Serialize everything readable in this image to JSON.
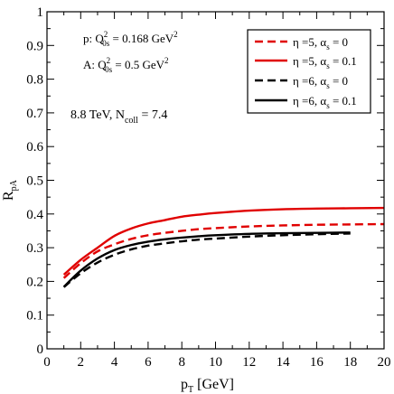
{
  "chart_data": {
    "type": "line",
    "xlabel": {
      "main": "p",
      "sub": "T",
      "rest": " [GeV]"
    },
    "ylabel": {
      "main": "R",
      "sub": "pA"
    },
    "xlim": [
      0,
      20
    ],
    "ylim": [
      0,
      1
    ],
    "xticks": [
      0,
      2,
      4,
      6,
      8,
      10,
      12,
      14,
      16,
      18,
      20
    ],
    "yticks": [
      0,
      0.1,
      0.2,
      0.3,
      0.4,
      0.5,
      0.6,
      0.7,
      0.8,
      0.9,
      1
    ],
    "ytick_labels": [
      "0",
      "0.1",
      "0.2",
      "0.3",
      "0.4",
      "0.5",
      "0.6",
      "0.7",
      "0.8",
      "0.9",
      "1"
    ],
    "legend_position": "top-right",
    "annotations": {
      "p_line": {
        "pre": "p:  Q",
        "sup": "2",
        "sub": "0s",
        "post": " = 0.168 GeV",
        "sup2": "2"
      },
      "a_line": {
        "pre": "A:  Q",
        "sup": "2",
        "sub": "0s",
        "post": " = 0.5 GeV",
        "sup2": "2"
      },
      "energy": {
        "pre": "8.8 TeV,  N",
        "sub": "coll",
        "post": " = 7.4"
      }
    },
    "series": [
      {
        "name": "η =5, α_s = 0",
        "label": {
          "pre": "η =5, α",
          "sub": "s",
          "post": " = 0"
        },
        "color": "#e00000",
        "dash": "dashed",
        "x": [
          1,
          2,
          3,
          4,
          5,
          6,
          7,
          8,
          9,
          10,
          12,
          14,
          16,
          18,
          20
        ],
        "y": [
          0.21,
          0.254,
          0.289,
          0.31,
          0.326,
          0.337,
          0.344,
          0.35,
          0.355,
          0.358,
          0.363,
          0.366,
          0.368,
          0.369,
          0.37
        ]
      },
      {
        "name": "η =5, α_s = 0.1",
        "label": {
          "pre": "η =5, α",
          "sub": "s",
          "post": " = 0.1"
        },
        "color": "#e00000",
        "dash": "solid",
        "x": [
          1,
          2,
          3,
          4,
          5,
          6,
          7,
          8,
          9,
          10,
          12,
          14,
          16,
          18,
          20
        ],
        "y": [
          0.22,
          0.264,
          0.3,
          0.335,
          0.357,
          0.372,
          0.382,
          0.392,
          0.398,
          0.403,
          0.41,
          0.414,
          0.416,
          0.417,
          0.418
        ]
      },
      {
        "name": "η =6, α_s = 0",
        "label": {
          "pre": "η =6, α",
          "sub": "s",
          "post": " = 0"
        },
        "color": "#000000",
        "dash": "dashed",
        "x": [
          1,
          2,
          3,
          4,
          5,
          6,
          7,
          8,
          9,
          10,
          12,
          14,
          16,
          18
        ],
        "y": [
          0.183,
          0.224,
          0.256,
          0.279,
          0.295,
          0.306,
          0.313,
          0.319,
          0.324,
          0.327,
          0.333,
          0.337,
          0.34,
          0.342
        ]
      },
      {
        "name": "η =6, α_s = 0.1",
        "label": {
          "pre": "η =6, α",
          "sub": "s",
          "post": " = 0.1"
        },
        "color": "#000000",
        "dash": "solid",
        "x": [
          1,
          2,
          3,
          4,
          5,
          6,
          7,
          8,
          9,
          10,
          12,
          14,
          16,
          18
        ],
        "y": [
          0.184,
          0.232,
          0.268,
          0.293,
          0.308,
          0.318,
          0.325,
          0.33,
          0.334,
          0.337,
          0.341,
          0.343,
          0.344,
          0.345
        ]
      }
    ]
  }
}
